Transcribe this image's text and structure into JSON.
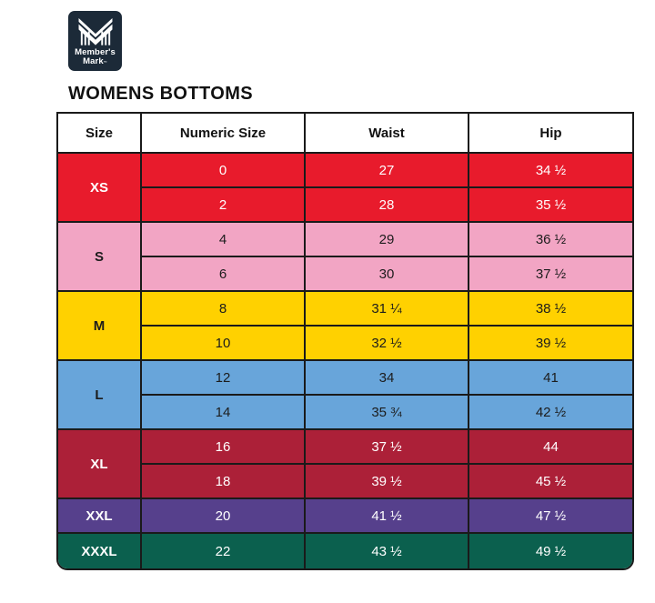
{
  "logo": {
    "icon": "members-mark-m-icon",
    "bg_color": "#1c2a38",
    "brand_line1": "Member's",
    "brand_line2": "Mark",
    "trademark": "™"
  },
  "title": "WOMENS BOTTOMS",
  "table": {
    "headers": [
      "Size",
      "Numeric Size",
      "Waist",
      "Hip"
    ],
    "border_color": "#1a1a1a",
    "groups": [
      {
        "size": "XS",
        "bg": "#e81b2c",
        "text": "#ffffff",
        "rows": [
          [
            "0",
            "27",
            "34 ½"
          ],
          [
            "2",
            "28",
            "35 ½"
          ]
        ]
      },
      {
        "size": "S",
        "bg": "#f2a5c4",
        "text": "#1c1c1c",
        "rows": [
          [
            "4",
            "29",
            "36 ½"
          ],
          [
            "6",
            "30",
            "37 ½"
          ]
        ]
      },
      {
        "size": "M",
        "bg": "#ffd100",
        "text": "#1c1c1c",
        "rows": [
          [
            "8",
            "31 ¼",
            "38 ½"
          ],
          [
            "10",
            "32 ½",
            "39 ½"
          ]
        ]
      },
      {
        "size": "L",
        "bg": "#68a5da",
        "text": "#1c1c1c",
        "rows": [
          [
            "12",
            "34",
            "41"
          ],
          [
            "14",
            "35 ¾",
            "42 ½"
          ]
        ]
      },
      {
        "size": "XL",
        "bg": "#ac2038",
        "text": "#ffffff",
        "rows": [
          [
            "16",
            "37 ½",
            "44"
          ],
          [
            "18",
            "39 ½",
            "45 ½"
          ]
        ]
      },
      {
        "size": "XXL",
        "bg": "#56408c",
        "text": "#ffffff",
        "rows": [
          [
            "20",
            "41 ½",
            "47 ½"
          ]
        ]
      },
      {
        "size": "XXXL",
        "bg": "#0b604e",
        "text": "#ffffff",
        "rows": [
          [
            "22",
            "43 ½",
            "49 ½"
          ]
        ]
      }
    ]
  }
}
